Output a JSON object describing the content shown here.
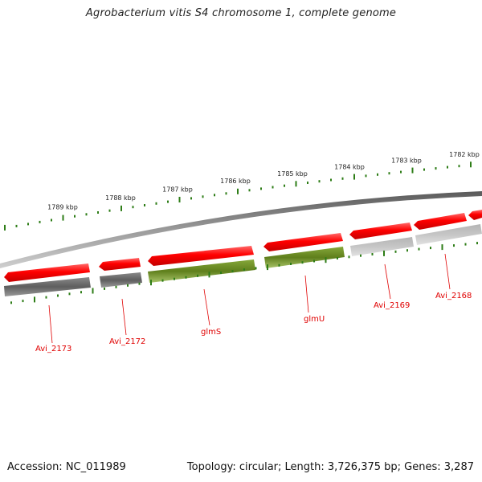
{
  "title": "Agrobacterium vitis S4 chromosome 1, complete genome",
  "footer": {
    "accession": "Accession: NC_011989",
    "summary": "Topology: circular; Length: 3,726,375 bp; Genes: 3,287"
  },
  "colors": {
    "scale_green": "#2e7d17",
    "backbone": "#808080",
    "forward_gene": "#ff0000",
    "label_red": "#e00000",
    "dark_gray": "#666666",
    "green_gene": "#6b8e23",
    "light_gray": "#bdbdbd"
  },
  "scale_labels": [
    "1789 kbp",
    "1788 kbp",
    "1787 kbp",
    "1786 kbp",
    "1785 kbp",
    "1784 kbp",
    "1783 kbp",
    "1782 kbp"
  ],
  "gene_labels": [
    "Avi_2173",
    "Avi_2172",
    "glmS",
    "glmU",
    "Avi_2169",
    "Avi_2168"
  ]
}
